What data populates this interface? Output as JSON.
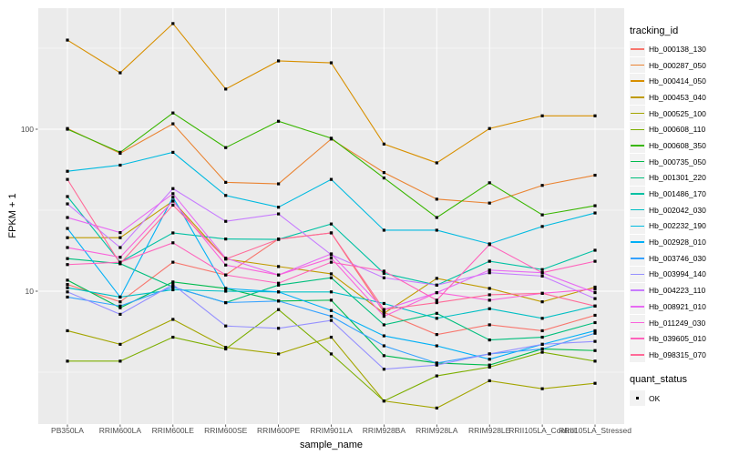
{
  "chart_data": {
    "type": "line",
    "title": "",
    "xlabel": "sample_name",
    "ylabel": "FPKM + 1",
    "y_scale": "log10",
    "y_tick_labels": [
      "100",
      "10"
    ],
    "y_major_ticks": [
      100,
      10
    ],
    "y_minor_gridlines": [
      316.2,
      31.62,
      3.162
    ],
    "ylim": [
      1.5,
      560
    ],
    "grid": true,
    "panel_bg": "#EBEBEB",
    "gridline_color": "#FFFFFF",
    "tick_color": "#333333",
    "axis_text_color": "#4D4D4D",
    "point_color": "#000000",
    "point_shape": "square",
    "legend": {
      "title": "tracking_id",
      "position": "right"
    },
    "quant_legend": {
      "title": "quant_status",
      "items": [
        {
          "label": "OK",
          "marker": "black-square"
        }
      ]
    },
    "categories": [
      "PB350LA",
      "RRIM600LA",
      "RRIM600LE",
      "RRIM600SE",
      "RRIM600PE",
      "RRIM901LA",
      "RRIM928BA",
      "RRIM928LA",
      "RRIM928LE",
      "RRII105LA_Control",
      "RRII105LA_Stressed"
    ],
    "series": [
      {
        "name": "Hb_000138_130",
        "color": "#F8766D",
        "values": [
          11.0,
          8.6,
          15.1,
          12.6,
          21.0,
          22.9,
          7.4,
          5.4,
          6.2,
          5.7,
          7.1
        ]
      },
      {
        "name": "Hb_000287_050",
        "color": "#EA8331",
        "values": [
          101,
          71,
          108,
          47,
          46,
          87,
          54,
          37,
          35,
          45,
          52
        ]
      },
      {
        "name": "Hb_000414_050",
        "color": "#D89000",
        "values": [
          355,
          223,
          449,
          177,
          264,
          257,
          81,
          62,
          101,
          121,
          121
        ]
      },
      {
        "name": "Hb_000453_040",
        "color": "#C09B00",
        "values": [
          21.4,
          21.4,
          36,
          15.8,
          14.2,
          12.8,
          7.3,
          12.0,
          10.4,
          8.6,
          10.6
        ]
      },
      {
        "name": "Hb_000525_100",
        "color": "#A3A500",
        "values": [
          5.7,
          4.7,
          6.7,
          4.5,
          4.1,
          5.2,
          2.1,
          1.9,
          2.8,
          2.5,
          2.7
        ]
      },
      {
        "name": "Hb_000608_110",
        "color": "#7CAE00",
        "values": [
          3.7,
          3.7,
          5.2,
          4.4,
          7.7,
          4.1,
          2.1,
          3.0,
          3.4,
          4.2,
          3.7
        ]
      },
      {
        "name": "Hb_000608_350",
        "color": "#39B600",
        "values": [
          100,
          72,
          126,
          77,
          112,
          88,
          50,
          28.5,
          46.7,
          29.6,
          33.7
        ]
      },
      {
        "name": "Hb_000735_050",
        "color": "#00BB4E",
        "values": [
          11.7,
          7.9,
          11.4,
          10.4,
          8.7,
          8.8,
          4.0,
          3.6,
          3.5,
          4.4,
          4.3
        ]
      },
      {
        "name": "Hb_001301_220",
        "color": "#00BF7D",
        "values": [
          15.9,
          14.8,
          10.6,
          8.5,
          10.9,
          12.1,
          6.2,
          7.3,
          5.0,
          5.2,
          6.4
        ]
      },
      {
        "name": "Hb_001486_170",
        "color": "#00C1A3",
        "values": [
          38.4,
          15.1,
          22.9,
          21.0,
          20.9,
          26.0,
          12.9,
          10.9,
          15.3,
          13.6,
          17.9
        ]
      },
      {
        "name": "Hb_002042_030",
        "color": "#00BFC4",
        "values": [
          10.5,
          9.2,
          10.2,
          10.0,
          9.9,
          9.9,
          8.4,
          6.8,
          7.8,
          6.8,
          8.1
        ]
      },
      {
        "name": "Hb_002232_190",
        "color": "#00BAE0",
        "values": [
          55,
          60,
          72,
          39,
          33,
          49,
          23.8,
          23.8,
          19.6,
          25.1,
          30.4
        ]
      },
      {
        "name": "Hb_002928_010",
        "color": "#00B0F6",
        "values": [
          24.4,
          9.2,
          38,
          10.4,
          9.9,
          7.6,
          5.3,
          4.6,
          3.8,
          4.7,
          5.7
        ]
      },
      {
        "name": "Hb_003746_030",
        "color": "#35A2FF",
        "values": [
          9.2,
          8.1,
          10.6,
          8.5,
          8.7,
          7.0,
          4.6,
          3.6,
          4.1,
          4.4,
          5.5
        ]
      },
      {
        "name": "Hb_003994_140",
        "color": "#9590FF",
        "values": [
          9.9,
          7.2,
          11.0,
          6.1,
          5.9,
          6.6,
          3.3,
          3.5,
          4.1,
          4.7,
          4.9
        ]
      },
      {
        "name": "Hb_004223_110",
        "color": "#C77CFF",
        "values": [
          34.6,
          18.6,
          43,
          27,
          30,
          16.8,
          12.1,
          10.9,
          13.0,
          12.4,
          9.0
        ]
      },
      {
        "name": "Hb_008921_010",
        "color": "#E76BF3",
        "values": [
          28.5,
          23.0,
          40,
          16.0,
          12.6,
          17.0,
          7.7,
          9.8,
          13.5,
          13.0,
          9.8
        ]
      },
      {
        "name": "Hb_011249_030",
        "color": "#FA62DB",
        "values": [
          18.6,
          16.2,
          36,
          14.5,
          12.6,
          16.0,
          7.0,
          9.8,
          8.8,
          9.7,
          10.3
        ]
      },
      {
        "name": "Hb_039605_010",
        "color": "#FF62BC",
        "values": [
          14.6,
          15.1,
          19.9,
          12.6,
          11.2,
          15.1,
          13.3,
          8.8,
          19.4,
          13.0,
          15.3
        ]
      },
      {
        "name": "Hb_098315_070",
        "color": "#FF6A98",
        "values": [
          49,
          14.8,
          34,
          15.8,
          20.9,
          22.9,
          7.7,
          8.5,
          9.5,
          9.7,
          8.1
        ]
      }
    ]
  }
}
